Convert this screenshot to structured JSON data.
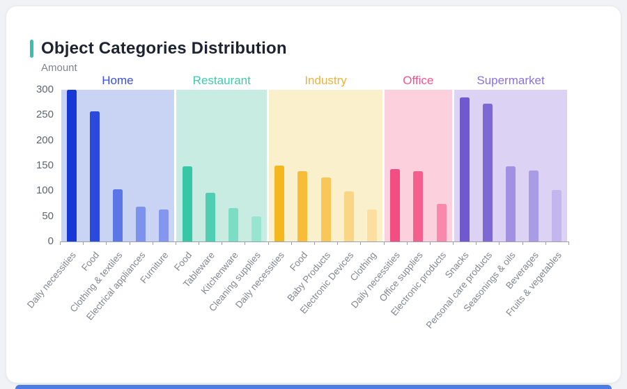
{
  "card": {
    "accent_color": "#35c0b0",
    "bottom_strip_color": "#4d7ce2"
  },
  "chart_data": {
    "type": "bar",
    "title": "Object Categories Distribution",
    "ylabel": "Amount",
    "xlabel": "",
    "ylim": [
      0,
      300
    ],
    "yticks": [
      0,
      50,
      100,
      150,
      200,
      250,
      300
    ],
    "grid": false,
    "legend_position": "none",
    "group_labels_position": "top",
    "groups": [
      {
        "label": "Home",
        "label_color": "#3950e0",
        "band_color": "#c9d4f4",
        "bars": [
          {
            "category": "Daily necessities",
            "value": 300,
            "color": "#1737d6"
          },
          {
            "category": "Food",
            "value": 258,
            "color": "#2b49dd"
          },
          {
            "category": "Clothing & textiles",
            "value": 103,
            "color": "#5b76e6"
          },
          {
            "category": "Electrical appliances",
            "value": 69,
            "color": "#7d92ec"
          },
          {
            "category": "Furniture",
            "value": 64,
            "color": "#8497ec"
          }
        ]
      },
      {
        "label": "Restaurant",
        "label_color": "#3dcbab",
        "band_color": "#c9ece2",
        "bars": [
          {
            "category": "Food",
            "value": 148,
            "color": "#38c7a6"
          },
          {
            "category": "Tableware",
            "value": 97,
            "color": "#4fceb1"
          },
          {
            "category": "Kitchenware",
            "value": 66,
            "color": "#7cdcc4"
          },
          {
            "category": "Cleaning supplies",
            "value": 50,
            "color": "#97e4d0"
          }
        ]
      },
      {
        "label": "Industry",
        "label_color": "#edb23a",
        "band_color": "#faf0cc",
        "bars": [
          {
            "category": "Daily necessities",
            "value": 150,
            "color": "#f5b71f"
          },
          {
            "category": "Food",
            "value": 139,
            "color": "#f7bd3a"
          },
          {
            "category": "Baby Products",
            "value": 126,
            "color": "#f8c659"
          },
          {
            "category": "Electronic Devices",
            "value": 99,
            "color": "#fad586"
          },
          {
            "category": "Clothing",
            "value": 64,
            "color": "#fbdf9e"
          }
        ]
      },
      {
        "label": "Office",
        "label_color": "#f2538a",
        "band_color": "#fdd0dd",
        "bars": [
          {
            "category": "Daily necessities",
            "value": 143,
            "color": "#f34e81"
          },
          {
            "category": "Office supplies",
            "value": 139,
            "color": "#f55f8e"
          },
          {
            "category": "Electronic products",
            "value": 75,
            "color": "#f889aa"
          }
        ]
      },
      {
        "label": "Supermarket",
        "label_color": "#8a70e2",
        "band_color": "#dcd3f4",
        "bars": [
          {
            "category": "Snacks",
            "value": 285,
            "color": "#6e59ce"
          },
          {
            "category": "Personal care products",
            "value": 272,
            "color": "#7d69d4"
          },
          {
            "category": "Seasonings & oils",
            "value": 148,
            "color": "#a291e3"
          },
          {
            "category": "Beverages",
            "value": 140,
            "color": "#aa9be5"
          },
          {
            "category": "Fruits & vegetables",
            "value": 102,
            "color": "#c3b6ef"
          }
        ]
      }
    ]
  }
}
